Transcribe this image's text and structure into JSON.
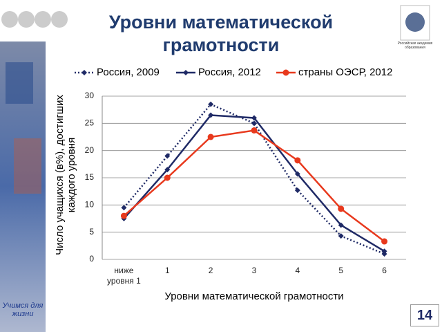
{
  "header": {
    "title": "Уровни математической грамотности",
    "organization": "Российская академия образования"
  },
  "sidebar": {
    "slogan": "Учимся для жизни"
  },
  "page_number": "14",
  "chart_data": {
    "type": "line",
    "x_label": "Уровни математической грамотности",
    "y_label": "Число учащихся (в%), достигших каждого уровня",
    "categories": [
      "ниже уровня 1",
      "1",
      "2",
      "3",
      "4",
      "5",
      "6"
    ],
    "series": [
      {
        "name": "Россия, 2009",
        "color": "#1f2a66",
        "style": "dotted",
        "marker": "diamond",
        "values": [
          9.5,
          19,
          28.5,
          25,
          12.7,
          4.3,
          1.0
        ]
      },
      {
        "name": "Россия, 2012",
        "color": "#1f2a66",
        "style": "solid",
        "marker": "diamond",
        "values": [
          7.5,
          16.5,
          26.5,
          26,
          15.7,
          6.3,
          1.5
        ]
      },
      {
        "name": "страны ОЭСР, 2012",
        "color": "#e8391d",
        "style": "solid",
        "marker": "circle",
        "values": [
          8,
          15,
          22.5,
          23.7,
          18.2,
          9.3,
          3.3
        ]
      }
    ],
    "ylim": [
      0,
      30
    ],
    "yticks": [
      0,
      5,
      10,
      15,
      20,
      25,
      30
    ],
    "grid": true,
    "legend": "top"
  }
}
